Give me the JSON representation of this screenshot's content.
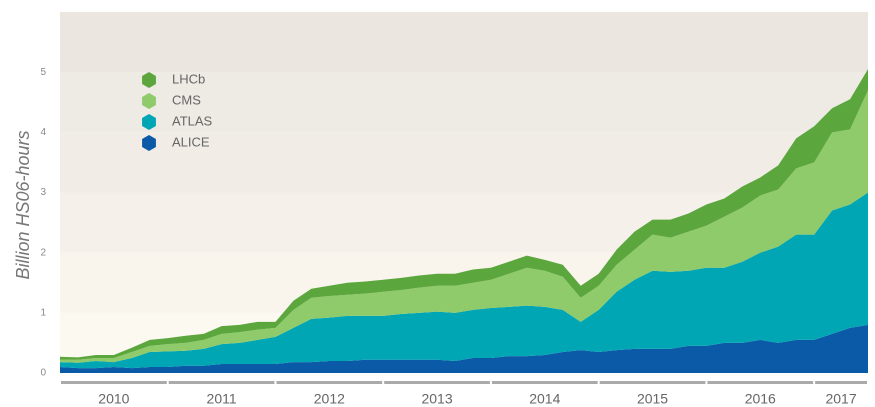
{
  "chart_data": {
    "type": "stacked_area",
    "y_label": "Billion HS06-hours",
    "categories": [
      null,
      null,
      null,
      null,
      null,
      null,
      null,
      null,
      null,
      null,
      null,
      null,
      null,
      null,
      null,
      null,
      null,
      null,
      null,
      null,
      null,
      null,
      null,
      null,
      null,
      null,
      null,
      null,
      null,
      null,
      null,
      null,
      null,
      null,
      null,
      null,
      null,
      null,
      null,
      null,
      null,
      null,
      null,
      null,
      null,
      null
    ],
    "year_labels": [
      "2010",
      "2011",
      "2012",
      "2013",
      "2014",
      "2015",
      "2016",
      "2017"
    ],
    "ylim": [
      0,
      6
    ],
    "yticks": [
      0,
      1,
      2,
      3,
      4,
      5
    ],
    "legend": "upper left",
    "series": [
      {
        "name": "ALICE",
        "color": "#0b5aa8",
        "values": [
          0.1,
          0.08,
          0.08,
          0.1,
          0.08,
          0.1,
          0.1,
          0.12,
          0.12,
          0.15,
          0.15,
          0.15,
          0.15,
          0.18,
          0.18,
          0.2,
          0.2,
          0.22,
          0.22,
          0.22,
          0.22,
          0.22,
          0.2,
          0.25,
          0.25,
          0.28,
          0.28,
          0.3,
          0.35,
          0.38,
          0.35,
          0.38,
          0.4,
          0.4,
          0.4,
          0.45,
          0.45,
          0.5,
          0.5,
          0.55,
          0.5,
          0.55,
          0.55,
          0.65,
          0.75,
          0.8
        ]
      },
      {
        "name": "ATLAS",
        "color": "#00a6b4",
        "values": [
          0.08,
          0.09,
          0.12,
          0.08,
          0.17,
          0.25,
          0.26,
          0.25,
          0.28,
          0.33,
          0.35,
          0.4,
          0.45,
          0.57,
          0.72,
          0.72,
          0.75,
          0.73,
          0.73,
          0.76,
          0.78,
          0.8,
          0.8,
          0.8,
          0.83,
          0.82,
          0.84,
          0.8,
          0.7,
          0.47,
          0.7,
          0.97,
          1.15,
          1.3,
          1.28,
          1.25,
          1.3,
          1.25,
          1.35,
          1.45,
          1.6,
          1.75,
          1.75,
          2.05,
          2.05,
          2.2
        ]
      },
      {
        "name": "CMS",
        "color": "#8fca6b",
        "values": [
          0.04,
          0.05,
          0.05,
          0.07,
          0.1,
          0.1,
          0.12,
          0.13,
          0.15,
          0.17,
          0.18,
          0.17,
          0.15,
          0.3,
          0.35,
          0.36,
          0.35,
          0.37,
          0.4,
          0.4,
          0.42,
          0.43,
          0.45,
          0.45,
          0.47,
          0.55,
          0.63,
          0.6,
          0.55,
          0.4,
          0.4,
          0.45,
          0.5,
          0.6,
          0.57,
          0.65,
          0.7,
          0.85,
          0.9,
          0.95,
          0.95,
          1.1,
          1.2,
          1.3,
          1.25,
          1.7
        ]
      },
      {
        "name": "LHCb",
        "color": "#5ba63d",
        "values": [
          0.05,
          0.04,
          0.05,
          0.05,
          0.07,
          0.1,
          0.1,
          0.12,
          0.1,
          0.13,
          0.12,
          0.13,
          0.1,
          0.15,
          0.15,
          0.17,
          0.2,
          0.2,
          0.2,
          0.2,
          0.2,
          0.2,
          0.2,
          0.22,
          0.2,
          0.2,
          0.2,
          0.18,
          0.2,
          0.2,
          0.2,
          0.25,
          0.3,
          0.25,
          0.3,
          0.3,
          0.35,
          0.3,
          0.35,
          0.3,
          0.4,
          0.5,
          0.6,
          0.4,
          0.5,
          0.35
        ]
      }
    ]
  }
}
